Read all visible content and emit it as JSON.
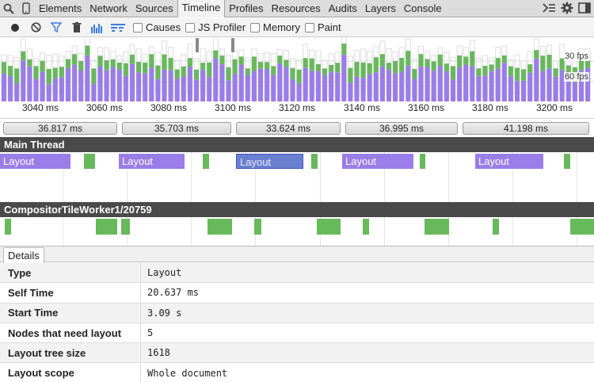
{
  "tabbar": {
    "tabs": [
      "Elements",
      "Network",
      "Sources",
      "Timeline",
      "Profiles",
      "Resources",
      "Audits",
      "Layers",
      "Console"
    ],
    "active": "Timeline"
  },
  "toolbar": {
    "checkboxes": [
      "Causes",
      "JS Profiler",
      "Memory",
      "Paint"
    ]
  },
  "overview": {
    "fps_30": "30 fps",
    "fps_60": "60 fps",
    "ticks": [
      "3040 ms",
      "3060 ms",
      "3080 ms",
      "3100 ms",
      "3120 ms",
      "3140 ms",
      "3160 ms",
      "3180 ms",
      "3200 ms"
    ]
  },
  "durations": [
    "36.817 ms",
    "35.703 ms",
    "33.624 ms",
    "36.995 ms",
    "41.198 ms"
  ],
  "threads": {
    "main": "Main Thread",
    "compositor": "CompositorTileWorker1/20759",
    "layout_label": "Layout"
  },
  "details": {
    "tab": "Details",
    "rows": [
      {
        "k": "Type",
        "v": "Layout"
      },
      {
        "k": "Self Time",
        "v": "20.637 ms"
      },
      {
        "k": "Start Time",
        "v": "3.09 s"
      },
      {
        "k": "Nodes that need layout",
        "v": "5"
      },
      {
        "k": "Layout tree size",
        "v": "1618"
      },
      {
        "k": "Layout scope",
        "v": "Whole document"
      }
    ]
  },
  "colors": {
    "scripting": "#9a7de8",
    "painting": "#68b85c",
    "selected": "#6a7fd0"
  }
}
